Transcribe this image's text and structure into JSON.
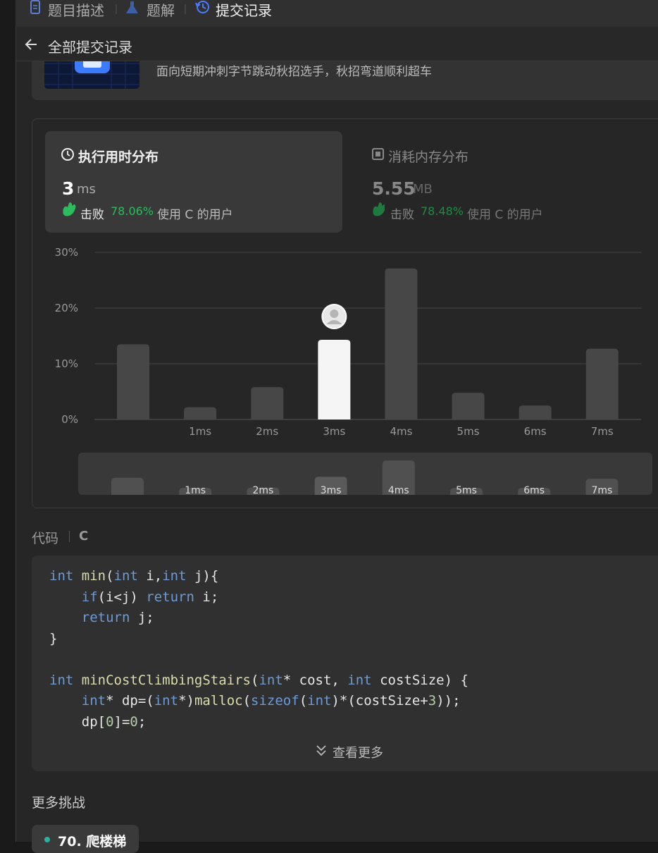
{
  "tabs": [
    "题目描述",
    "题解",
    "提交记录"
  ],
  "header": {
    "back_label": "全部提交记录"
  },
  "banner": {
    "text": "面向短期冲刺字节跳动秋招选手，秋招弯道顺利超车"
  },
  "runtime": {
    "title": "执行用时分布",
    "value": 3,
    "unit": "ms",
    "beat_label": "击败",
    "beat_pct": "78.06%",
    "beat_suffix": "使用 C 的用户"
  },
  "memory": {
    "title": "消耗内存分布",
    "value": 5.55,
    "unit": "MB",
    "beat_label": "击败",
    "beat_pct": "78.48%",
    "beat_suffix": "使用 C 的用户"
  },
  "chart_data": {
    "type": "bar",
    "categories": [
      null,
      "1ms",
      "2ms",
      "3ms",
      "4ms",
      "5ms",
      "6ms",
      "7ms"
    ],
    "values": [
      13.5,
      2.2,
      5.8,
      14.3,
      27.1,
      4.8,
      2.5,
      12.7
    ],
    "color": "#474747",
    "highlight_index": 3,
    "highlight_color": "#f5f5f5",
    "ylim": [
      0,
      30
    ],
    "yticks": [
      {
        "value": 0,
        "label": "0%"
      },
      {
        "value": 10,
        "label": "10%"
      },
      {
        "value": 20,
        "label": "20%"
      },
      {
        "value": 30,
        "label": "30%"
      }
    ],
    "grid": true
  },
  "code": {
    "label": "代码",
    "language": "C",
    "groups": [
      [
        "int min(int i,int j){",
        "    if(i<j) return i;",
        "    return j;",
        "}"
      ],
      [
        "int minCostClimbingStairs(int* cost, int costSize) {",
        "    int* dp=(int*)malloc(sizeof(int)*(costSize+3));",
        "    dp[0]=0;"
      ]
    ],
    "more": "查看更多"
  },
  "more_challenges": {
    "title": "更多挑战",
    "items": [
      "70. 爬楼梯"
    ]
  }
}
